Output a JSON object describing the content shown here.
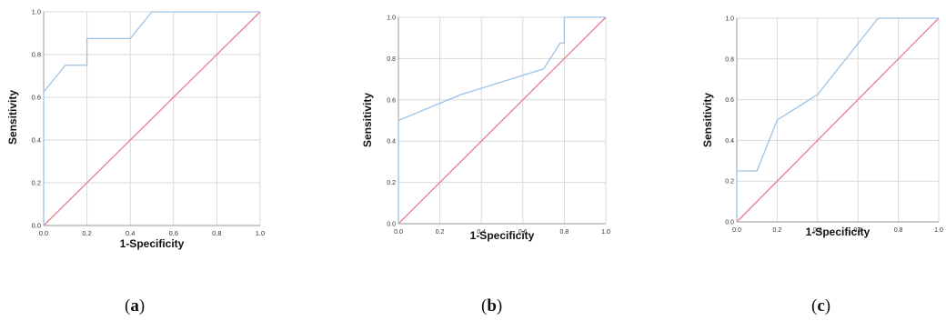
{
  "chart_data": [
    {
      "type": "line",
      "panel_label": "a",
      "xlabel": "1-Specificity",
      "ylabel": "Sensitivity",
      "xlim": [
        0,
        1
      ],
      "ylim": [
        0,
        1
      ],
      "xticks": [
        "0.0",
        "0.2",
        "0.4",
        "0.6",
        "0.8",
        "1.0"
      ],
      "yticks": [
        "0.0",
        "0.2",
        "0.4",
        "0.6",
        "0.8",
        "1.0"
      ],
      "grid": true,
      "series": [
        {
          "color": "#9dc3e6",
          "x": [
            0,
            0,
            0.1,
            0.2,
            0.2,
            0.4,
            0.5,
            1.0
          ],
          "y": [
            0,
            0.625,
            0.75,
            0.75,
            0.875,
            0.875,
            1.0,
            1.0
          ]
        },
        {
          "color": "#e87d8f",
          "x": [
            0,
            1
          ],
          "y": [
            0,
            1
          ]
        }
      ]
    },
    {
      "type": "line",
      "panel_label": "b",
      "xlabel": "1-Specificity",
      "ylabel": "Sensitivity",
      "xlim": [
        0,
        1
      ],
      "ylim": [
        0,
        1
      ],
      "xticks": [
        "0.0",
        "0.2",
        "0.4",
        "0.6",
        "0.8",
        "1.0"
      ],
      "yticks": [
        "0.0",
        "0.2",
        "0.4",
        "0.6",
        "0.8",
        "1.0"
      ],
      "grid": true,
      "series": [
        {
          "color": "#9dc3e6",
          "x": [
            0,
            0,
            0.3,
            0.7,
            0.78,
            0.8,
            0.8,
            1.0
          ],
          "y": [
            0,
            0.5,
            0.625,
            0.75,
            0.875,
            0.875,
            1.0,
            1.0
          ]
        },
        {
          "color": "#e87d8f",
          "x": [
            0,
            1
          ],
          "y": [
            0,
            1
          ]
        }
      ]
    },
    {
      "type": "line",
      "panel_label": "c",
      "xlabel": "1-Specificity",
      "ylabel": "Sensitivity",
      "xlim": [
        0,
        1
      ],
      "ylim": [
        0,
        1
      ],
      "xticks": [
        "0.0",
        "0.2",
        "0.4",
        "0.6",
        "0.8",
        "1.0"
      ],
      "yticks": [
        "0.0",
        "0.2",
        "0.4",
        "0.6",
        "0.8",
        "1.0"
      ],
      "grid": true,
      "series": [
        {
          "color": "#9dc3e6",
          "x": [
            0,
            0,
            0.1,
            0.2,
            0.4,
            0.7,
            1.0
          ],
          "y": [
            0,
            0.25,
            0.25,
            0.5,
            0.625,
            1.0,
            1.0
          ]
        },
        {
          "color": "#e87d8f",
          "x": [
            0,
            1
          ],
          "y": [
            0,
            1
          ]
        }
      ]
    }
  ]
}
